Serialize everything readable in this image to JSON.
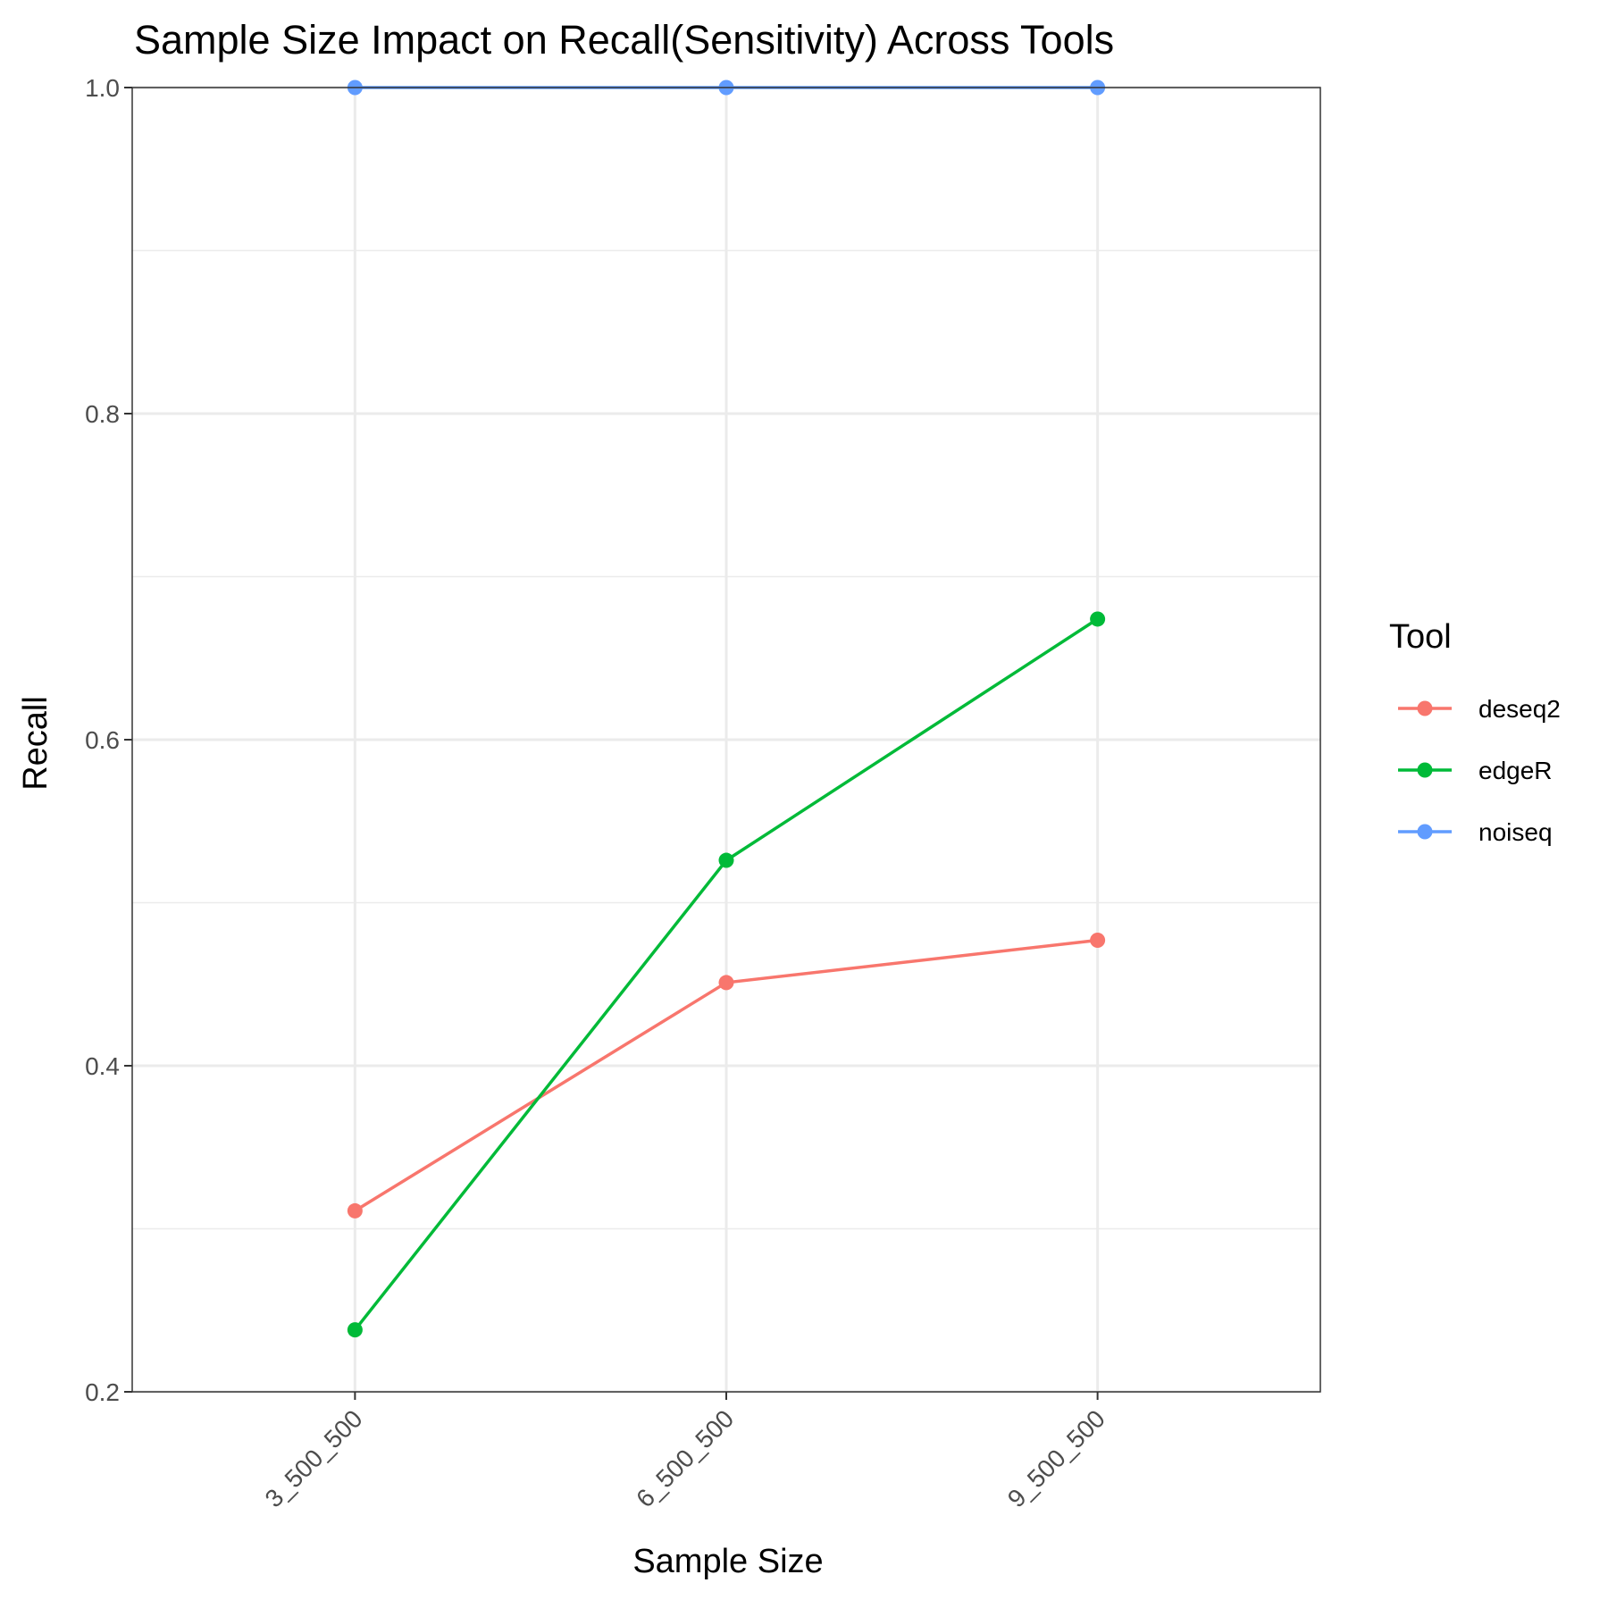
{
  "chart_data": {
    "type": "line",
    "title": "Sample Size Impact on Recall(Sensitivity) Across Tools",
    "xlabel": "Sample Size",
    "ylabel": "Recall",
    "categories": [
      "3_500_500",
      "6_500_500",
      "9_500_500"
    ],
    "ylim": [
      0.2,
      1.0
    ],
    "yticks": [
      "0.2",
      "0.4",
      "0.6",
      "0.8",
      "1.0"
    ],
    "grid": true,
    "legend": {
      "title": "Tool",
      "position": "right"
    },
    "series": [
      {
        "name": "deseq2",
        "color": "#F8766D",
        "values": [
          0.311,
          0.451,
          0.477
        ]
      },
      {
        "name": "edgeR",
        "color": "#00BA38",
        "values": [
          0.238,
          0.526,
          0.674
        ]
      },
      {
        "name": "noiseq",
        "color": "#619CFF",
        "values": [
          1.0,
          1.0,
          1.0
        ]
      }
    ]
  }
}
